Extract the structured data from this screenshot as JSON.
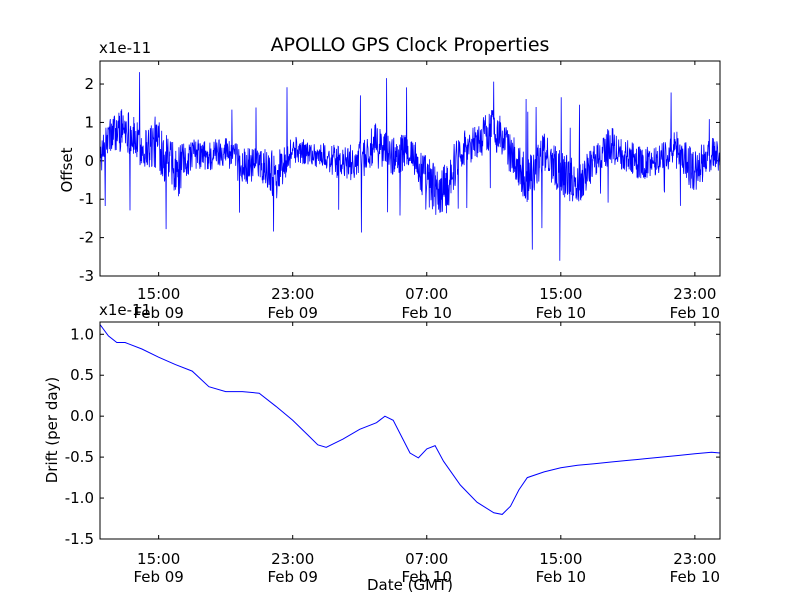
{
  "chart_data": [
    {
      "type": "line",
      "title": "APOLLO GPS Clock Properties",
      "xlabel": "",
      "ylabel": "Offset",
      "y_multiplier": "x1e-11",
      "color": "#0000ff",
      "xlim": [
        "2009-02-09 11:30",
        "2009-02-11 00:30"
      ],
      "ylim": [
        -3,
        2.6
      ],
      "yticks": [
        "2",
        "1",
        "0",
        "-1",
        "-2",
        "-3"
      ],
      "xticks": [
        {
          "time": "15:00",
          "date": "Feb 09"
        },
        {
          "time": "23:00",
          "date": "Feb 09"
        },
        {
          "time": "07:00",
          "date": "Feb 10"
        },
        {
          "time": "15:00",
          "date": "Feb 10"
        },
        {
          "time": "23:00",
          "date": "Feb 10"
        }
      ],
      "series": [
        {
          "x": [
            "2009-02-09 11:30",
            "2009-02-09 12:00",
            "2009-02-09 13:00",
            "2009-02-09 14:00",
            "2009-02-09 15:00",
            "2009-02-09 16:00",
            "2009-02-09 17:00",
            "2009-02-09 18:00",
            "2009-02-09 19:00",
            "2009-02-09 20:00",
            "2009-02-09 21:00",
            "2009-02-09 22:00",
            "2009-02-09 23:00",
            "2009-02-10 00:00",
            "2009-02-10 01:00",
            "2009-02-10 02:00",
            "2009-02-10 03:00",
            "2009-02-10 04:00",
            "2009-02-10 05:00",
            "2009-02-10 06:00",
            "2009-02-10 07:00",
            "2009-02-10 08:00",
            "2009-02-10 09:00",
            "2009-02-10 10:00",
            "2009-02-10 11:00",
            "2009-02-10 12:00",
            "2009-02-10 13:00",
            "2009-02-10 14:00",
            "2009-02-10 15:00",
            "2009-02-10 16:00",
            "2009-02-10 17:00",
            "2009-02-10 18:00",
            "2009-02-10 19:00",
            "2009-02-10 20:00",
            "2009-02-10 21:00",
            "2009-02-10 22:00",
            "2009-02-10 23:00",
            "2009-02-11 00:00",
            "2009-02-11 00:30"
          ],
          "y": [
            0.0,
            0.6,
            0.9,
            0.3,
            0.5,
            -0.4,
            0.2,
            0.1,
            0.3,
            -0.2,
            0.0,
            -0.4,
            0.3,
            0.2,
            0.1,
            -0.1,
            0.0,
            0.4,
            0.1,
            0.3,
            -0.6,
            -0.9,
            0.3,
            0.5,
            0.9,
            0.2,
            -0.5,
            0.2,
            -0.3,
            -0.6,
            0.0,
            0.4,
            0.1,
            -0.1,
            0.1,
            0.3,
            -0.3,
            0.2,
            0.1
          ],
          "noise": [
            0.5,
            0.7,
            0.8,
            0.7,
            1.0,
            1.0,
            0.5,
            0.6,
            0.5,
            0.7,
            0.6,
            0.9,
            0.5,
            0.4,
            0.5,
            0.6,
            0.7,
            0.8,
            0.7,
            0.6,
            1.0,
            1.0,
            0.7,
            0.6,
            0.8,
            0.7,
            0.9,
            0.7,
            0.8,
            0.8,
            0.6,
            0.7,
            0.6,
            0.6,
            0.5,
            0.7,
            0.8,
            0.6,
            0.5
          ]
        }
      ]
    },
    {
      "type": "line",
      "xlabel": "Date (GMT)",
      "ylabel": "Drift (per day)",
      "y_multiplier": "x1e-11",
      "color": "#0000ff",
      "xlim": [
        "2009-02-09 11:30",
        "2009-02-11 00:30"
      ],
      "ylim": [
        -1.5,
        1.15
      ],
      "yticks": [
        "1.0",
        "0.5",
        "0.0",
        "-0.5",
        "-1.0",
        "-1.5"
      ],
      "xticks": [
        {
          "time": "15:00",
          "date": "Feb 09"
        },
        {
          "time": "23:00",
          "date": "Feb 09"
        },
        {
          "time": "07:00",
          "date": "Feb 10"
        },
        {
          "time": "15:00",
          "date": "Feb 10"
        },
        {
          "time": "23:00",
          "date": "Feb 10"
        }
      ],
      "series": [
        {
          "x": [
            "2009-02-09 11:30",
            "2009-02-09 12:00",
            "2009-02-09 12:30",
            "2009-02-09 13:00",
            "2009-02-09 14:00",
            "2009-02-09 15:00",
            "2009-02-09 16:00",
            "2009-02-09 17:00",
            "2009-02-09 18:00",
            "2009-02-09 19:00",
            "2009-02-09 20:00",
            "2009-02-09 21:00",
            "2009-02-09 22:00",
            "2009-02-09 23:00",
            "2009-02-10 00:00",
            "2009-02-10 00:30",
            "2009-02-10 01:00",
            "2009-02-10 02:00",
            "2009-02-10 03:00",
            "2009-02-10 04:00",
            "2009-02-10 04:30",
            "2009-02-10 05:00",
            "2009-02-10 05:30",
            "2009-02-10 06:00",
            "2009-02-10 06:30",
            "2009-02-10 07:00",
            "2009-02-10 07:30",
            "2009-02-10 08:00",
            "2009-02-10 09:00",
            "2009-02-10 10:00",
            "2009-02-10 11:00",
            "2009-02-10 11:30",
            "2009-02-10 12:00",
            "2009-02-10 12:30",
            "2009-02-10 13:00",
            "2009-02-10 14:00",
            "2009-02-10 15:00",
            "2009-02-10 16:00",
            "2009-02-10 17:00",
            "2009-02-10 18:00",
            "2009-02-10 19:00",
            "2009-02-10 20:00",
            "2009-02-10 21:00",
            "2009-02-10 22:00",
            "2009-02-10 23:00",
            "2009-02-11 00:00",
            "2009-02-11 00:30"
          ],
          "y": [
            1.12,
            0.98,
            0.9,
            0.9,
            0.82,
            0.72,
            0.63,
            0.55,
            0.36,
            0.3,
            0.3,
            0.28,
            0.12,
            -0.05,
            -0.25,
            -0.35,
            -0.38,
            -0.28,
            -0.16,
            -0.08,
            0.0,
            -0.05,
            -0.25,
            -0.45,
            -0.51,
            -0.4,
            -0.36,
            -0.55,
            -0.84,
            -1.05,
            -1.18,
            -1.2,
            -1.1,
            -0.9,
            -0.75,
            -0.68,
            -0.63,
            -0.6,
            -0.58,
            -0.56,
            -0.54,
            -0.52,
            -0.5,
            -0.48,
            -0.46,
            -0.44,
            -0.45
          ]
        }
      ]
    }
  ]
}
